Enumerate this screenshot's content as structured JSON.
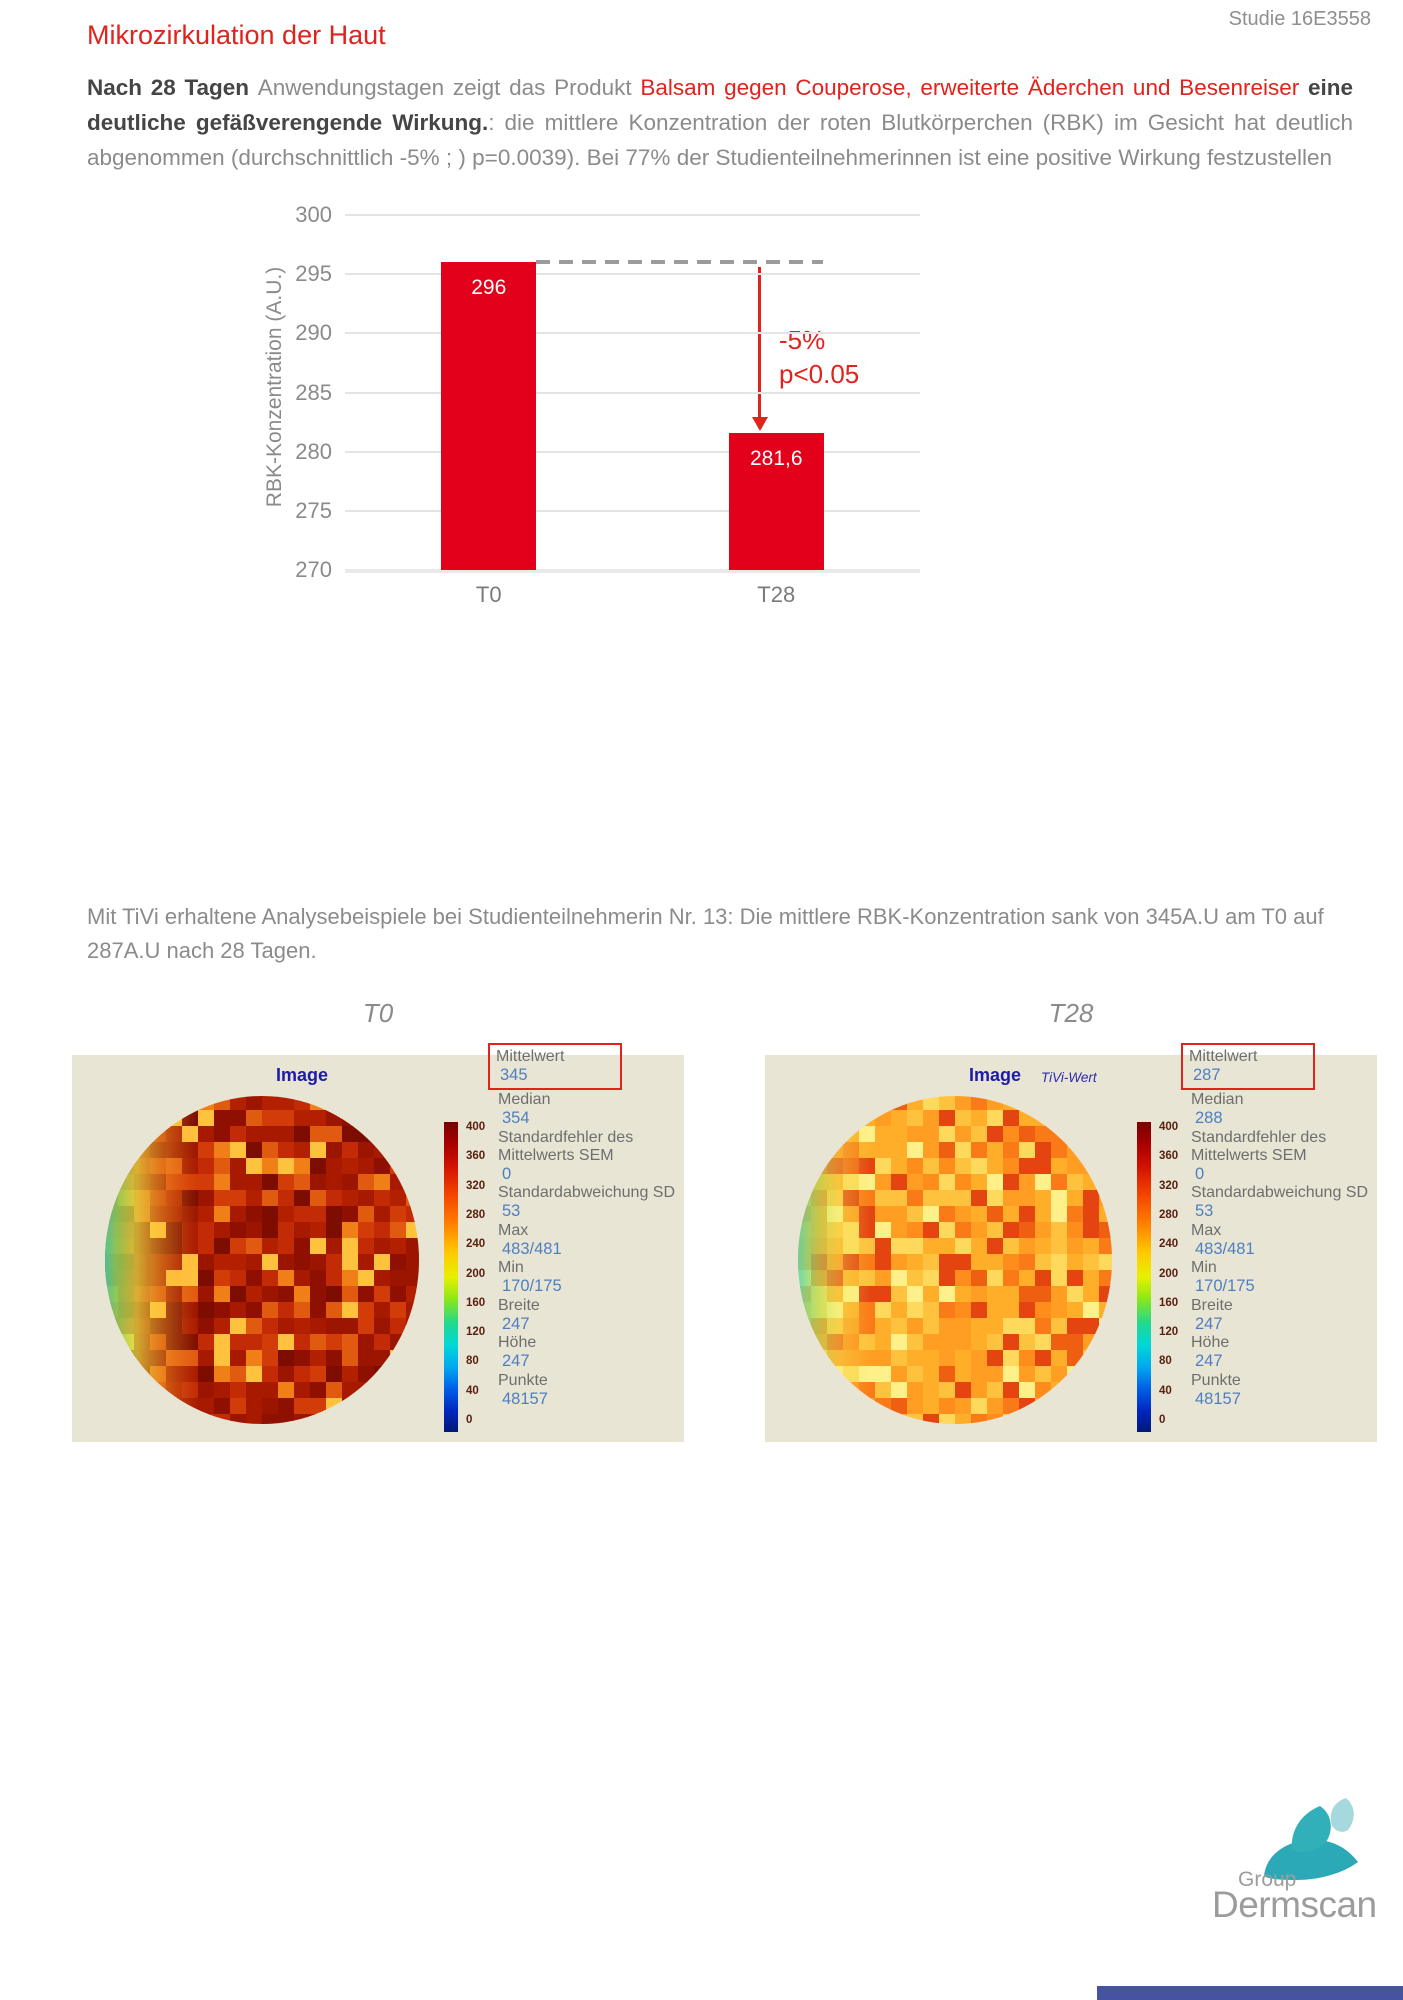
{
  "header": {
    "study_label": "Studie 16E3558",
    "title": "Mikrozirkulation der Haut"
  },
  "intro": {
    "segments": [
      {
        "text": "Nach 28 Tagen "
      },
      {
        "text": "Anwendungstagen zeigt das Produkt "
      },
      {
        "text": "Balsam gegen Couperose, erweiterte Äderchen und Besenreiser "
      },
      {
        "text": "eine deutliche gefäßverengende Wirkung."
      },
      {
        "text": ": die mittlere Konzentration der roten Blutkörperchen (RBK) im Gesicht hat deutlich abgenommen (durchschnittlich -5% ; ) p=0.0039). Bei 77% der Studienteilnehmerinnen ist eine positive Wirkung festzustellen"
      }
    ]
  },
  "chart_data": {
    "type": "bar",
    "categories": [
      "T0",
      "T28"
    ],
    "values": [
      296,
      281.6
    ],
    "bar_labels": [
      "296",
      "281,6"
    ],
    "title": "",
    "xlabel": "",
    "ylabel": "RBK-Konzentration (A.U.)",
    "ylim": [
      270,
      300
    ],
    "yticks": [
      270,
      275,
      280,
      285,
      290,
      295,
      300
    ],
    "grid": true,
    "legend": "none",
    "bar_color": "#e2001a",
    "annotation": {
      "line1": "-5%",
      "line2": "p<0.05"
    }
  },
  "tivi": {
    "caption": "Mit TiVi erhaltene Analysebeispiele bei Studienteilnehmerin Nr. 13: Die mittlere RBK-Konzentration sank von 345A.U am T0 auf 287A.U nach 28 Tagen.",
    "colorbar_ticks": [
      "400",
      "360",
      "320",
      "280",
      "240",
      "200",
      "160",
      "120",
      "80",
      "40",
      "0"
    ],
    "panels": [
      {
        "header": "T0",
        "image_label": "Image",
        "tivi_wert_label": "",
        "stats": [
          {
            "label": "Mittelwert",
            "value": "345"
          },
          {
            "label": "Median",
            "value": "354"
          },
          {
            "label": "Standardfehler des Mittelwerts SEM",
            "value": "0"
          },
          {
            "label": "Standardabweichung SD",
            "value": "53"
          },
          {
            "label": "Max",
            "value": "483/481"
          },
          {
            "label": "Min",
            "value": "170/175"
          },
          {
            "label": "Breite",
            "value": "247"
          },
          {
            "label": "Höhe",
            "value": "247"
          },
          {
            "label": "Punkte",
            "value": "48157"
          }
        ]
      },
      {
        "header": "T28",
        "image_label": "Image",
        "tivi_wert_label": "TiVi-Wert",
        "stats": [
          {
            "label": "Mittelwert",
            "value": "287"
          },
          {
            "label": "Median",
            "value": "288"
          },
          {
            "label": "Standardfehler des Mittelwerts SEM",
            "value": "0"
          },
          {
            "label": "Standardabweichung SD",
            "value": "53"
          },
          {
            "label": "Max",
            "value": "483/481"
          },
          {
            "label": "Min",
            "value": "170/175"
          },
          {
            "label": "Breite",
            "value": "247"
          },
          {
            "label": "Höhe",
            "value": "247"
          },
          {
            "label": "Punkte",
            "value": "48157"
          }
        ]
      }
    ],
    "heatmap_palettes": {
      "t0": [
        "#7c0d00",
        "#8f1000",
        "#9c1500",
        "#a81a00",
        "#b32000",
        "#8f1000",
        "#a81a00",
        "#c22b05",
        "#d23c08",
        "#7c0d00",
        "#9c1500",
        "#e05a10",
        "#f07f18",
        "#ffc23e",
        "#c22b05",
        "#a81a00"
      ],
      "t28": [
        "#ff9e22",
        "#ffae2a",
        "#ffc23e",
        "#ffd95c",
        "#ff8d1c",
        "#f97a16",
        "#ef5f12",
        "#e34410",
        "#ffae2a",
        "#ffc23e",
        "#ff9e22",
        "#ffd95c",
        "#fff08a",
        "#ff9e22",
        "#e34410",
        "#ffae2a"
      ]
    }
  },
  "footer": {
    "logo_group": "Group",
    "logo_name": "Dermscan"
  },
  "colors": {
    "accent_red": "#e0231c",
    "bar_red": "#e2001a",
    "panel_beige": "#e9e5d5",
    "value_blue": "#4d7fc0",
    "image_title_navy": "#1c1ca8",
    "logo_teal": "#2ca9b6",
    "logo_teal_light": "#a6d9de",
    "footer_bar_blue": "#44549f",
    "body_gray": "#8b8b8b"
  }
}
